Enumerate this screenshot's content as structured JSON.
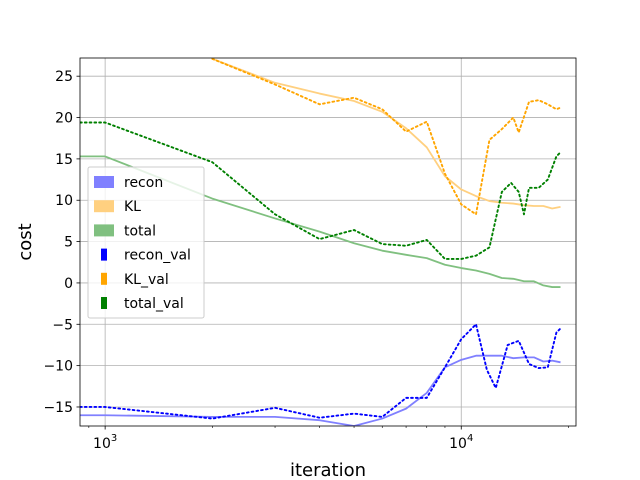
{
  "chart_data": {
    "type": "line",
    "title": "",
    "xlabel": "iteration",
    "ylabel": "cost",
    "x_scale": "log",
    "xlim": [
      850,
      21000
    ],
    "ylim": [
      -17.3,
      27.2
    ],
    "grid": true,
    "legend_position": "center-left",
    "x_ticks": [
      {
        "value": 1000,
        "label": "10",
        "exponent": "3"
      },
      {
        "value": 10000,
        "label": "10",
        "exponent": "4"
      }
    ],
    "y_ticks": [
      {
        "value": -15,
        "label": "−15"
      },
      {
        "value": -10,
        "label": "−10"
      },
      {
        "value": -5,
        "label": "−5"
      },
      {
        "value": 0,
        "label": "0"
      },
      {
        "value": 5,
        "label": "5"
      },
      {
        "value": 10,
        "label": "10"
      },
      {
        "value": 15,
        "label": "15"
      },
      {
        "value": 20,
        "label": "20"
      },
      {
        "value": 25,
        "label": "25"
      }
    ],
    "series": [
      {
        "name": "recon",
        "color": "#8080ff",
        "style": "solid",
        "x": [
          850,
          1000,
          2000,
          3000,
          4000,
          5000,
          6000,
          7000,
          8000,
          9000,
          10000,
          11000,
          12000,
          13000,
          14000,
          15000,
          16000,
          17000,
          18000,
          19000
        ],
        "y": [
          -16.0,
          -16.0,
          -16.2,
          -16.2,
          -16.6,
          -17.3,
          -16.4,
          -15.2,
          -13.3,
          -10.2,
          -9.3,
          -8.8,
          -8.8,
          -8.8,
          -9.1,
          -9.0,
          -9.0,
          -9.5,
          -9.4,
          -9.6
        ]
      },
      {
        "name": "KL",
        "color": "#ffd080",
        "style": "solid",
        "x": [
          2000,
          3000,
          4000,
          5000,
          6000,
          7000,
          8000,
          9000,
          10000,
          11000,
          12000,
          13000,
          14000,
          15000,
          16000,
          17000,
          18000,
          19000
        ],
        "y": [
          27.1,
          24.2,
          22.9,
          22.0,
          20.7,
          18.7,
          16.4,
          12.9,
          11.3,
          10.5,
          9.9,
          9.7,
          9.6,
          9.4,
          9.3,
          9.3,
          9.0,
          9.2
        ]
      },
      {
        "name": "total",
        "color": "#80c080",
        "style": "solid",
        "x": [
          850,
          1000,
          2000,
          3000,
          4000,
          5000,
          6000,
          7000,
          8000,
          9000,
          10000,
          11000,
          12000,
          13000,
          14000,
          15000,
          16000,
          17000,
          18000,
          19000
        ],
        "y": [
          15.3,
          15.3,
          10.2,
          7.8,
          6.2,
          4.8,
          3.9,
          3.4,
          3.0,
          2.2,
          1.8,
          1.5,
          1.1,
          0.6,
          0.5,
          0.2,
          0.2,
          -0.3,
          -0.5,
          -0.5
        ]
      },
      {
        "name": "recon_val",
        "color": "#0000ff",
        "style": "dotted",
        "x": [
          850,
          1000,
          2000,
          3000,
          4000,
          5000,
          6000,
          7000,
          8000,
          9000,
          10000,
          11000,
          11800,
          12500,
          13500,
          14500,
          15500,
          16500,
          17500,
          18500,
          19000
        ],
        "y": [
          -15.0,
          -15.0,
          -16.4,
          -15.1,
          -16.3,
          -15.8,
          -16.2,
          -13.9,
          -13.9,
          -10.2,
          -6.8,
          -5.0,
          -10.5,
          -12.7,
          -7.5,
          -7.0,
          -9.8,
          -10.3,
          -10.2,
          -6.0,
          -5.5
        ]
      },
      {
        "name": "KL_val",
        "color": "#ffa500",
        "style": "dotted",
        "x": [
          2000,
          3000,
          4000,
          5000,
          6000,
          7000,
          8000,
          9000,
          10000,
          11000,
          12000,
          13000,
          14000,
          14500,
          15500,
          16500,
          17500,
          18500,
          19000
        ],
        "y": [
          27.1,
          24.0,
          21.6,
          22.4,
          21.0,
          18.3,
          19.5,
          13.2,
          9.5,
          8.3,
          17.3,
          18.6,
          20.0,
          18.2,
          21.9,
          22.1,
          21.6,
          21.0,
          21.2
        ]
      },
      {
        "name": "total_val",
        "color": "#008000",
        "style": "dotted",
        "x": [
          850,
          1000,
          2000,
          3000,
          4000,
          5000,
          6000,
          7000,
          8000,
          9000,
          10000,
          11000,
          12000,
          13000,
          13800,
          14500,
          15000,
          15500,
          16500,
          17500,
          18500,
          19000
        ],
        "y": [
          19.4,
          19.4,
          14.6,
          8.3,
          5.3,
          6.4,
          4.7,
          4.5,
          5.2,
          2.9,
          2.9,
          3.3,
          4.3,
          11.0,
          12.1,
          11.0,
          8.3,
          11.5,
          11.5,
          12.5,
          15.3,
          15.8
        ]
      }
    ]
  }
}
